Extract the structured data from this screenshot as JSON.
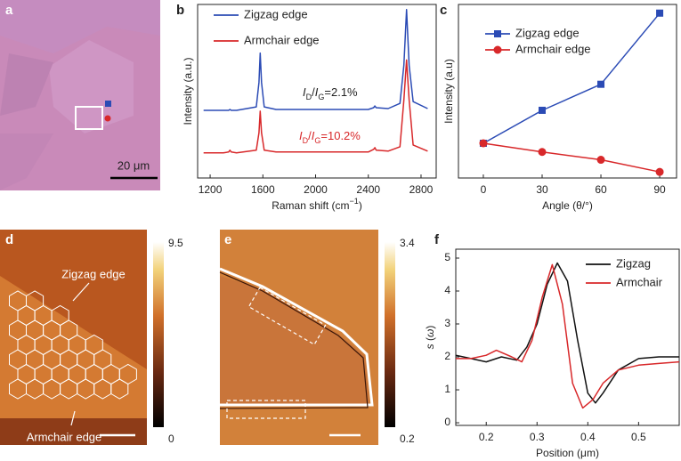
{
  "figure": {
    "panel_labels": [
      "a",
      "b",
      "c",
      "d",
      "e",
      "f"
    ],
    "a": {
      "scale_bar": "20 μm"
    },
    "d": {
      "top_label": "Zigzag edge",
      "bottom_label": "Armchair edge",
      "colorbar_max": 9.5,
      "colorbar_min": 0
    },
    "e": {
      "colorbar_max": 3.4,
      "colorbar_min": 0.2
    }
  },
  "chart_data": [
    {
      "type": "line",
      "legend": "upper left",
      "xlabel": [
        {
          "text": "Raman shift (cm"
        },
        {
          "text": "−1",
          "style": "sup"
        },
        {
          "text": ")"
        }
      ],
      "ylabel": "Intensity (a.u.)",
      "xlim": [
        1105,
        2915
      ],
      "xticks": [
        1200,
        1600,
        2000,
        2400,
        2800
      ],
      "ylim": [
        0,
        10
      ],
      "x": [
        1150,
        1300,
        1340,
        1350,
        1360,
        1400,
        1550,
        1570,
        1580,
        1590,
        1610,
        1700,
        2000,
        2400,
        2440,
        2450,
        2460,
        2550,
        2640,
        2670,
        2690,
        2710,
        2740,
        2850
      ],
      "series": [
        {
          "name": "Zigzag edge",
          "color": "#2b4bb5",
          "values": [
            3.9,
            3.9,
            3.9,
            3.95,
            3.9,
            3.9,
            4.1,
            5.5,
            7.2,
            5.5,
            4.1,
            3.95,
            3.95,
            3.95,
            4.05,
            4.15,
            4.05,
            4.0,
            4.3,
            6.5,
            9.7,
            6.5,
            4.4,
            4.0
          ]
        },
        {
          "name": "Armchair edge",
          "color": "#d8282a",
          "values": [
            1.45,
            1.45,
            1.5,
            1.6,
            1.5,
            1.45,
            1.6,
            2.6,
            3.85,
            2.6,
            1.6,
            1.5,
            1.5,
            1.5,
            1.65,
            1.75,
            1.6,
            1.55,
            1.8,
            4.5,
            6.8,
            4.5,
            1.9,
            1.55
          ]
        }
      ],
      "annotations": [
        {
          "color": "#222222",
          "parts": [
            {
              "text": "I",
              "style": "italic"
            },
            {
              "text": "D",
              "style": "sub"
            },
            {
              "text": "/"
            },
            {
              "text": "I",
              "style": "italic"
            },
            {
              "text": "G",
              "style": "sub"
            },
            {
              "text": "=2.1%"
            }
          ]
        },
        {
          "color": "#d8282a",
          "parts": [
            {
              "text": "I",
              "style": "italic"
            },
            {
              "text": "D",
              "style": "sub"
            },
            {
              "text": "/"
            },
            {
              "text": "I",
              "style": "italic"
            },
            {
              "text": "G",
              "style": "sub"
            },
            {
              "text": "=10.2%"
            }
          ]
        }
      ]
    },
    {
      "type": "line",
      "legend": "upper left",
      "xlabel": "Angle (θ/°)",
      "ylabel": "Intensity (a.u)",
      "xlim": [
        -12.7,
        98.6
      ],
      "xticks": [
        0,
        30,
        60,
        90
      ],
      "ylim": [
        0,
        10
      ],
      "x": [
        0,
        30,
        60,
        90
      ],
      "series": [
        {
          "name": "Zigzag edge",
          "color": "#2b4bb5",
          "marker": "square",
          "values": [
            2.0,
            3.9,
            5.4,
            9.5
          ]
        },
        {
          "name": "Armchair edge",
          "color": "#d8282a",
          "marker": "circle",
          "values": [
            2.0,
            1.5,
            1.05,
            0.35
          ]
        }
      ]
    },
    {
      "type": "line",
      "legend": "upper right",
      "xlabel": "Position (μm)",
      "ylabel": [
        {
          "text": "s",
          "style": "italic"
        },
        {
          "text": " ("
        },
        {
          "text": "ω",
          "style": "italic"
        },
        {
          "text": ")"
        }
      ],
      "xlim": [
        0.14,
        0.58
      ],
      "xticks": [
        0.2,
        0.3,
        0.4,
        0.5
      ],
      "ylim": [
        -0.08,
        5.27
      ],
      "yticks": [
        0,
        1,
        2,
        3,
        4,
        5
      ],
      "series": [
        {
          "name": "Zigzag",
          "color": "#111111",
          "x": [
            0.14,
            0.17,
            0.2,
            0.23,
            0.26,
            0.28,
            0.3,
            0.32,
            0.34,
            0.36,
            0.38,
            0.4,
            0.415,
            0.43,
            0.46,
            0.5,
            0.54,
            0.58
          ],
          "values": [
            2.05,
            1.95,
            1.85,
            2.0,
            1.9,
            2.3,
            3.0,
            4.2,
            4.85,
            4.3,
            2.5,
            0.9,
            0.6,
            0.9,
            1.6,
            1.95,
            2.0,
            2.0
          ]
        },
        {
          "name": "Armchair",
          "color": "#d8282a",
          "x": [
            0.14,
            0.17,
            0.2,
            0.22,
            0.25,
            0.27,
            0.29,
            0.31,
            0.33,
            0.35,
            0.37,
            0.39,
            0.41,
            0.43,
            0.46,
            0.5,
            0.54,
            0.58
          ],
          "values": [
            1.95,
            1.95,
            2.05,
            2.2,
            2.0,
            1.85,
            2.5,
            3.8,
            4.8,
            3.6,
            1.2,
            0.45,
            0.7,
            1.2,
            1.6,
            1.75,
            1.8,
            1.85
          ]
        }
      ]
    }
  ]
}
